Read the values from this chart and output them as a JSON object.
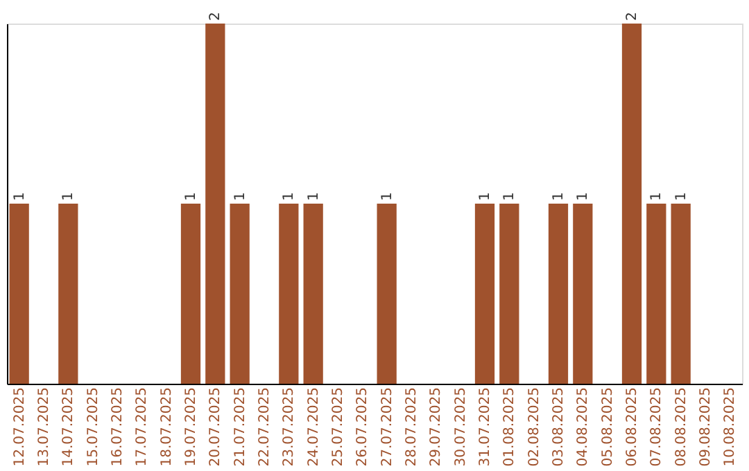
{
  "chart_data": {
    "type": "bar",
    "categories": [
      "12.07.2025",
      "13.07.2025",
      "14.07.2025",
      "15.07.2025",
      "16.07.2025",
      "17.07.2025",
      "18.07.2025",
      "19.07.2025",
      "20.07.2025",
      "21.07.2025",
      "22.07.2025",
      "23.07.2025",
      "24.07.2025",
      "25.07.2025",
      "26.07.2025",
      "27.07.2025",
      "28.07.2025",
      "29.07.2025",
      "30.07.2025",
      "31.07.2025",
      "01.08.2025",
      "02.08.2025",
      "03.08.2025",
      "04.08.2025",
      "05.08.2025",
      "06.08.2025",
      "07.08.2025",
      "08.08.2025",
      "09.08.2025",
      "10.08.2025"
    ],
    "values": [
      1,
      0,
      1,
      0,
      0,
      0,
      0,
      1,
      2,
      1,
      0,
      1,
      1,
      0,
      0,
      1,
      0,
      0,
      0,
      1,
      1,
      0,
      1,
      1,
      0,
      2,
      1,
      1,
      0,
      0
    ],
    "value_labels": [
      "1",
      null,
      "1",
      null,
      null,
      null,
      null,
      "1",
      "2",
      "1",
      null,
      "1",
      "1",
      null,
      null,
      "1",
      null,
      null,
      null,
      "1",
      "1",
      null,
      "1",
      "1",
      null,
      "2",
      "1",
      "1",
      null,
      null
    ],
    "color": "#a0522d",
    "tick_labels": "x",
    "grid": false
  }
}
